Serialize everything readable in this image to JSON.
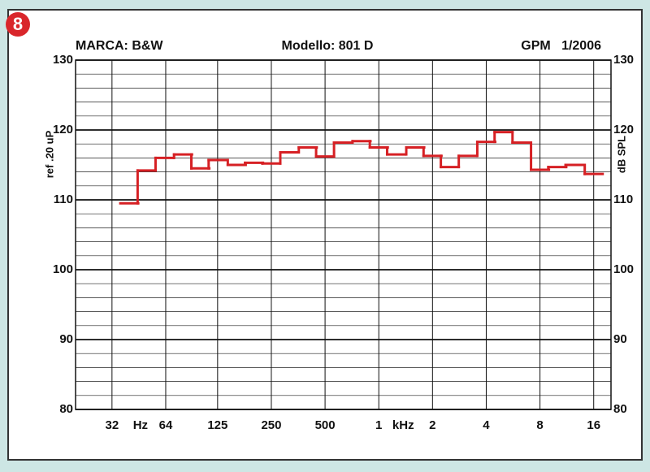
{
  "badge": "8",
  "chart_data": {
    "type": "step",
    "header": [
      "MARCA: B&W",
      "Modello: 801 D",
      "GPM   1/2006"
    ],
    "ylabel": "ref .20 uP",
    "y2label": "dB SPL",
    "x_units": [
      "Hz",
      "kHz"
    ],
    "log_x": true,
    "xlim": [
      20,
      20000
    ],
    "xticks": [
      32,
      64,
      125,
      250,
      500,
      {
        "value": 1000,
        "label": "1"
      },
      {
        "value": 2000,
        "label": "2"
      },
      {
        "value": 4000,
        "label": "4"
      },
      {
        "value": 8000,
        "label": "8"
      },
      {
        "value": 16000,
        "label": "16"
      }
    ],
    "ylim": [
      80,
      130
    ],
    "yticks": [
      80,
      90,
      100,
      110,
      120,
      130
    ],
    "yminorticks": [
      82,
      84,
      86,
      88,
      92,
      94,
      96,
      98,
      102,
      104,
      106,
      108,
      112,
      114,
      116,
      118,
      122,
      124,
      126,
      128
    ],
    "grid": true,
    "series": [
      {
        "color": "#d62024",
        "x": [
          40,
          50,
          63,
          80,
          100,
          125,
          160,
          200,
          250,
          315,
          400,
          500,
          630,
          800,
          1000,
          1250,
          1600,
          2000,
          2500,
          3150,
          4000,
          5000,
          6300,
          8000,
          10000,
          12500,
          16000
        ],
        "values": [
          109.5,
          114.2,
          116,
          116.5,
          114.5,
          115.7,
          115,
          115.3,
          115.2,
          116.8,
          117.5,
          116.2,
          118.2,
          118.4,
          117.5,
          116.5,
          117.5,
          116.3,
          114.7,
          116.3,
          118.3,
          119.7,
          118.2,
          114.3,
          114.7,
          115,
          113.7
        ]
      }
    ]
  }
}
